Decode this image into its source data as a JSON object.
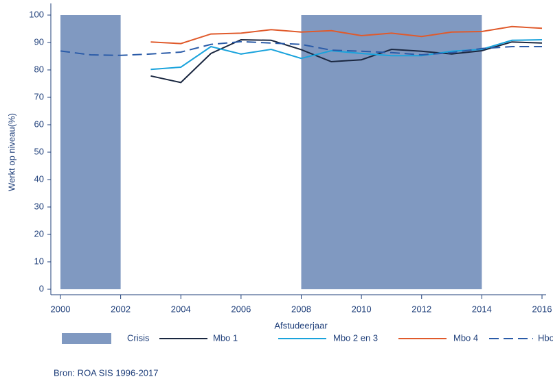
{
  "chart_data": {
    "type": "line",
    "ylabel": "Werkt op niveau(%)",
    "xlabel": "Afstudeerjaar",
    "source": "Bron: ROA SIS 1996-2017",
    "x": [
      2000,
      2001,
      2002,
      2003,
      2004,
      2005,
      2006,
      2007,
      2008,
      2009,
      2010,
      2011,
      2012,
      2013,
      2014,
      2015,
      2016
    ],
    "xlim": [
      2000,
      2016
    ],
    "xticks": [
      2000,
      2002,
      2004,
      2006,
      2008,
      2010,
      2012,
      2014,
      2016
    ],
    "ylim": [
      0,
      100
    ],
    "yticks": [
      0,
      10,
      20,
      30,
      40,
      50,
      60,
      70,
      80,
      90,
      100
    ],
    "shaded": {
      "name": "Crisis",
      "color": "#8099c1",
      "ranges": [
        [
          2000,
          2002
        ],
        [
          2008,
          2014
        ]
      ]
    },
    "series": [
      {
        "name": "Mbo 1",
        "color": "#1a2740",
        "dash": false,
        "values": [
          null,
          null,
          null,
          77.8,
          75.4,
          86,
          91,
          90.8,
          87.4,
          83,
          83.7,
          87.5,
          86.8,
          85.8,
          87,
          90.2,
          89.8
        ]
      },
      {
        "name": "Mbo 2 en 3",
        "color": "#1aa3dc",
        "dash": false,
        "values": [
          null,
          null,
          null,
          80.2,
          81,
          88.5,
          85.8,
          87.5,
          84.2,
          87,
          86,
          85.2,
          85.2,
          86.8,
          87.5,
          90.8,
          91
        ]
      },
      {
        "name": "Mbo 4",
        "color": "#e05a2b",
        "dash": false,
        "values": [
          null,
          null,
          null,
          90.2,
          89.6,
          93.1,
          93.4,
          94.7,
          93.8,
          94.3,
          92.5,
          93.4,
          92.2,
          93.8,
          94,
          95.8,
          95.2
        ]
      },
      {
        "name": "Hbo",
        "color": "#2a5ba8",
        "dash": true,
        "values": [
          86.9,
          85.5,
          85.3,
          85.8,
          86.5,
          89.3,
          90.3,
          89.8,
          89.3,
          87.2,
          86.8,
          86.3,
          85.5,
          86.3,
          87.8,
          88.5,
          88.5
        ]
      }
    ]
  }
}
